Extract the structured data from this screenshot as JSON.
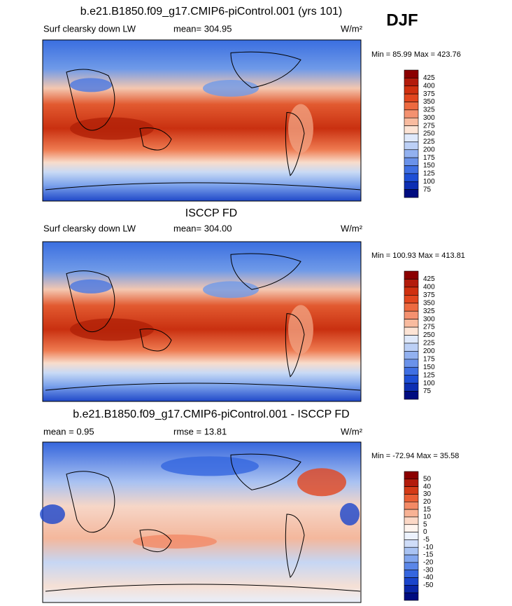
{
  "season": "DJF",
  "panels": [
    {
      "title": "b.e21.B1850.f09_g17.CMIP6-piControl.001 (yrs 101)",
      "left": "Surf clearsky down LW",
      "center": "mean= 304.95",
      "units": "W/m²",
      "minmax": "Min =  85.99 Max = 423.76",
      "colorbar": [
        "425",
        "400",
        "375",
        "350",
        "325",
        "300",
        "275",
        "250",
        "225",
        "200",
        "175",
        "150",
        "125",
        "100",
        "75"
      ]
    },
    {
      "title": "ISCCP FD",
      "left": "Surf clearsky down LW",
      "center": "mean= 304.00",
      "units": "W/m²",
      "minmax": "Min = 100.93 Max = 413.81",
      "colorbar": [
        "425",
        "400",
        "375",
        "350",
        "325",
        "300",
        "275",
        "250",
        "225",
        "200",
        "175",
        "150",
        "125",
        "100",
        "75"
      ]
    },
    {
      "title": "b.e21.B1850.f09_g17.CMIP6-piControl.001 - ISCCP FD",
      "left": "mean =   0.95",
      "center": "rmse =  13.81",
      "units": "W/m²",
      "minmax": "Min = -72.94 Max =  35.58",
      "colorbar": [
        "50",
        "40",
        "30",
        "20",
        "15",
        "10",
        "5",
        "0",
        "-5",
        "-10",
        "-15",
        "-20",
        "-30",
        "-40",
        "-50"
      ]
    }
  ]
}
